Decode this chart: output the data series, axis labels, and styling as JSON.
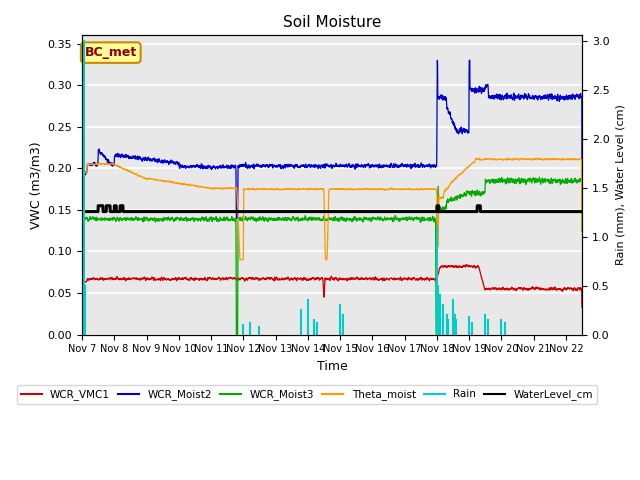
{
  "title": "Soil Moisture",
  "xlabel": "Time",
  "ylabel_left": "VWC (m3/m3)",
  "ylabel_right": "Rain (mm), Water Level (cm)",
  "xlim_days": [
    0,
    15.5
  ],
  "ylim_left": [
    0.0,
    0.36
  ],
  "ylim_right": [
    0.0,
    3.06
  ],
  "x_tick_labels": [
    "Nov 7",
    "Nov 8",
    "Nov 9",
    "Nov 10",
    "Nov 11",
    "Nov 12",
    "Nov 13",
    "Nov 14",
    "Nov 15",
    "Nov 16",
    "Nov 17",
    "Nov 18",
    "Nov 19",
    "Nov 20",
    "Nov 21",
    "Nov 22"
  ],
  "annotation_text": "BC_met",
  "bg_color": "#e8e8e8",
  "grid_color": "#ffffff",
  "colors": {
    "vcm1": "#cc0000",
    "moist2": "#0000cc",
    "moist3": "#00aa00",
    "theta": "#ff9900",
    "rain": "#00cccc",
    "water": "#000000"
  },
  "legend_labels": [
    "WCR_VMC1",
    "WCR_Moist2",
    "WCR_Moist3",
    "Theta_moist",
    "Rain",
    "WaterLevel_cm"
  ]
}
